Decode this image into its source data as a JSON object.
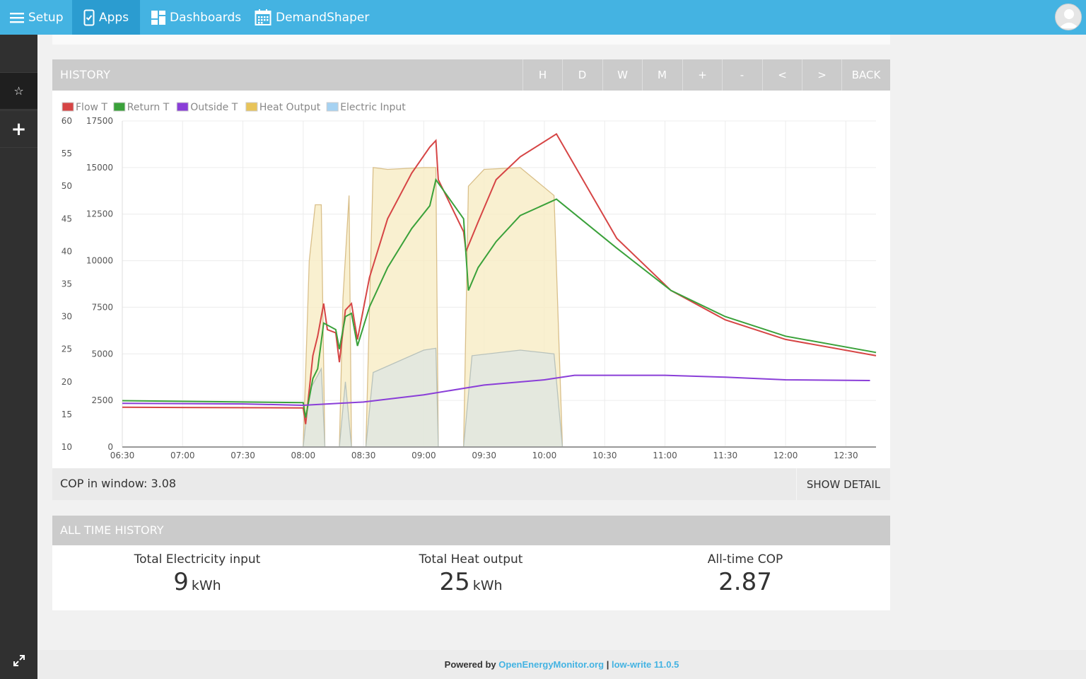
{
  "nav": {
    "setup": "Setup",
    "apps": "Apps",
    "dashboards": "Dashboards",
    "demandshaper": "DemandShaper"
  },
  "history": {
    "title": "HISTORY",
    "buttons": [
      "H",
      "D",
      "W",
      "M",
      "+",
      "-",
      "<",
      ">",
      "BACK"
    ]
  },
  "cop_bar": {
    "text": "COP in window: 3.08",
    "show_detail": "SHOW DETAIL"
  },
  "alltime": {
    "title": "ALL TIME HISTORY",
    "electricity": {
      "label": "Total Electricity input",
      "value": "9",
      "unit": "kWh"
    },
    "heat": {
      "label": "Total Heat output",
      "value": "25",
      "unit": "kWh"
    },
    "cop": {
      "label": "All-time COP",
      "value": "2.87"
    }
  },
  "footer": {
    "powered": "Powered by",
    "link": "OpenEnergyMonitor.org",
    "sep": "|",
    "version": "low-write 11.0.5"
  },
  "colors": {
    "topbar": "#44b3e2",
    "flow": "#d64545",
    "return": "#3aa13a",
    "outside": "#8a3ed8",
    "heat": "#e8c45a",
    "electric": "#a6d2f2"
  },
  "chart_data": {
    "type": "line",
    "legend": [
      "Flow T",
      "Return T",
      "Outside T",
      "Heat Output",
      "Electric Input"
    ],
    "x_tick_labels": [
      "06:30",
      "07:00",
      "07:30",
      "08:00",
      "08:30",
      "09:00",
      "09:30",
      "10:00",
      "10:30",
      "11:00",
      "11:30",
      "12:00",
      "12:30"
    ],
    "y_left_ticks": [
      10,
      15,
      20,
      25,
      30,
      35,
      40,
      45,
      50,
      55,
      60
    ],
    "y_right_ticks": [
      0,
      2500,
      5000,
      7500,
      10000,
      12500,
      15000,
      17500
    ],
    "y_left_range": [
      10,
      60
    ],
    "y_right_range": [
      0,
      17500
    ],
    "x_range_hours": [
      6.5,
      12.75
    ],
    "series": [
      {
        "name": "Flow T",
        "axis": "left",
        "points": [
          [
            6.5,
            16.1
          ],
          [
            8.0,
            16.0
          ],
          [
            8.02,
            13.5
          ],
          [
            8.08,
            24.0
          ],
          [
            8.12,
            27.0
          ],
          [
            8.17,
            32.0
          ],
          [
            8.2,
            28.0
          ],
          [
            8.27,
            27.5
          ],
          [
            8.3,
            23.0
          ],
          [
            8.35,
            31.0
          ],
          [
            8.4,
            32.0
          ],
          [
            8.45,
            26.5
          ],
          [
            8.55,
            36.0
          ],
          [
            8.7,
            45.0
          ],
          [
            8.9,
            52.0
          ],
          [
            9.05,
            56.0
          ],
          [
            9.1,
            57.0
          ],
          [
            9.12,
            51.0
          ],
          [
            9.33,
            43.0
          ],
          [
            9.35,
            40.0
          ],
          [
            9.45,
            44.5
          ],
          [
            9.6,
            51.0
          ],
          [
            9.8,
            54.5
          ],
          [
            10.1,
            58.0
          ],
          [
            10.6,
            42.0
          ],
          [
            11.05,
            34.0
          ],
          [
            11.5,
            29.5
          ],
          [
            12.0,
            26.5
          ],
          [
            12.75,
            24.0
          ]
        ]
      },
      {
        "name": "Return T",
        "axis": "left",
        "points": [
          [
            6.5,
            17.1
          ],
          [
            8.0,
            16.8
          ],
          [
            8.02,
            14.5
          ],
          [
            8.08,
            20.5
          ],
          [
            8.12,
            22.0
          ],
          [
            8.17,
            29.0
          ],
          [
            8.27,
            28.0
          ],
          [
            8.3,
            25.0
          ],
          [
            8.35,
            30.0
          ],
          [
            8.4,
            30.5
          ],
          [
            8.45,
            25.5
          ],
          [
            8.55,
            31.5
          ],
          [
            8.7,
            37.5
          ],
          [
            8.9,
            43.5
          ],
          [
            9.05,
            47.0
          ],
          [
            9.1,
            51.0
          ],
          [
            9.33,
            45.0
          ],
          [
            9.37,
            34.0
          ],
          [
            9.45,
            37.5
          ],
          [
            9.6,
            41.5
          ],
          [
            9.8,
            45.5
          ],
          [
            10.1,
            48.0
          ],
          [
            10.6,
            40.5
          ],
          [
            11.05,
            34.0
          ],
          [
            11.5,
            30.0
          ],
          [
            12.0,
            27.0
          ],
          [
            12.75,
            24.5
          ]
        ]
      },
      {
        "name": "Outside T",
        "axis": "left",
        "points": [
          [
            6.5,
            16.7
          ],
          [
            7.5,
            16.6
          ],
          [
            8.0,
            16.4
          ],
          [
            8.5,
            16.9
          ],
          [
            9.0,
            18.0
          ],
          [
            9.5,
            19.5
          ],
          [
            10.0,
            20.3
          ],
          [
            10.25,
            21.0
          ],
          [
            11.0,
            21.0
          ],
          [
            11.5,
            20.7
          ],
          [
            12.0,
            20.3
          ],
          [
            12.7,
            20.2
          ]
        ]
      },
      {
        "name": "Heat Output",
        "axis": "right",
        "points": [
          [
            6.5,
            0
          ],
          [
            8.0,
            0
          ],
          [
            8.03,
            6000
          ],
          [
            8.05,
            10000
          ],
          [
            8.1,
            13000
          ],
          [
            8.15,
            13000
          ],
          [
            8.18,
            0
          ],
          [
            8.3,
            0
          ],
          [
            8.33,
            8000
          ],
          [
            8.38,
            13500
          ],
          [
            8.4,
            0
          ],
          [
            8.52,
            0
          ],
          [
            8.58,
            15000
          ],
          [
            8.7,
            14900
          ],
          [
            9.0,
            15000
          ],
          [
            9.1,
            15000
          ],
          [
            9.12,
            0
          ],
          [
            9.33,
            0
          ],
          [
            9.37,
            14000
          ],
          [
            9.5,
            14900
          ],
          [
            9.8,
            15000
          ],
          [
            10.08,
            13500
          ],
          [
            10.15,
            0
          ],
          [
            12.75,
            0
          ]
        ]
      },
      {
        "name": "Electric Input",
        "axis": "right",
        "points": [
          [
            6.5,
            0
          ],
          [
            8.0,
            0
          ],
          [
            8.05,
            3000
          ],
          [
            8.15,
            4200
          ],
          [
            8.18,
            0
          ],
          [
            8.3,
            0
          ],
          [
            8.35,
            3500
          ],
          [
            8.4,
            0
          ],
          [
            8.52,
            0
          ],
          [
            8.58,
            4000
          ],
          [
            9.0,
            5200
          ],
          [
            9.1,
            5300
          ],
          [
            9.12,
            0
          ],
          [
            9.33,
            0
          ],
          [
            9.4,
            4900
          ],
          [
            9.8,
            5200
          ],
          [
            10.08,
            5000
          ],
          [
            10.15,
            0
          ],
          [
            12.75,
            0
          ]
        ]
      }
    ]
  }
}
